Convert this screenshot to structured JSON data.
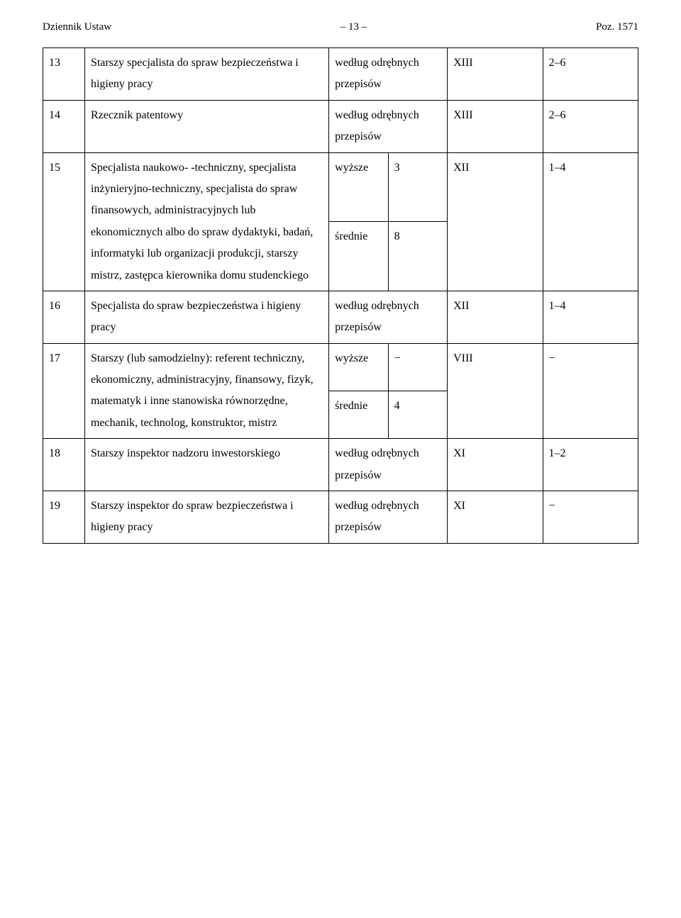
{
  "header": {
    "left": "Dziennik Ustaw",
    "center": "– 13 –",
    "right": "Poz. 1571"
  },
  "rows": {
    "r13": {
      "num": "13",
      "desc": "Starszy specjalista do spraw bezpieczeństwa i higieny pracy",
      "req": "według odrębnych przepisów",
      "cat": "XIII",
      "grade": "2–6"
    },
    "r14": {
      "num": "14",
      "desc": "Rzecznik patentowy",
      "req": "według odrębnych przepisów",
      "cat": "XIII",
      "grade": "2–6"
    },
    "r15a": {
      "num": "15",
      "desc": "Specjalista naukowo- -techniczny, specjalista inżynieryjno-techniczny, specjalista do spraw finansowych, administracyjnych lub ekonomicznych albo do spraw dydaktyki, badań, informatyki lub organizacji produkcji, starszy mistrz, zastępca kierownika domu studenckiego",
      "req1": "wyższe",
      "req2": "3",
      "cat": "XII",
      "grade": "1–4"
    },
    "r15b": {
      "req1": "średnie",
      "req2": "8"
    },
    "r16": {
      "num": "16",
      "desc": "Specjalista do spraw bezpieczeństwa i higieny pracy",
      "req": "według odrębnych przepisów",
      "cat": "XII",
      "grade": "1–4"
    },
    "r17a": {
      "num": "17",
      "desc": "Starszy (lub samodzielny): referent techniczny, ekonomiczny, administracyjny, finansowy, fizyk, matematyk i inne stanowiska równorzędne, mechanik, technolog, konstruktor, mistrz",
      "req1": "wyższe",
      "req2": "−",
      "cat": "VIII",
      "grade": "−"
    },
    "r17b": {
      "req1": "średnie",
      "req2": "4"
    },
    "r18": {
      "num": "18",
      "desc": "Starszy inspektor nadzoru inwestorskiego",
      "req": "według odrębnych przepisów",
      "cat": "XI",
      "grade": "1–2"
    },
    "r19": {
      "num": "19",
      "desc": "Starszy inspektor do spraw bezpieczeństwa i higieny pracy",
      "req": "według odrębnych przepisów",
      "cat": "XI",
      "grade": "−"
    }
  }
}
